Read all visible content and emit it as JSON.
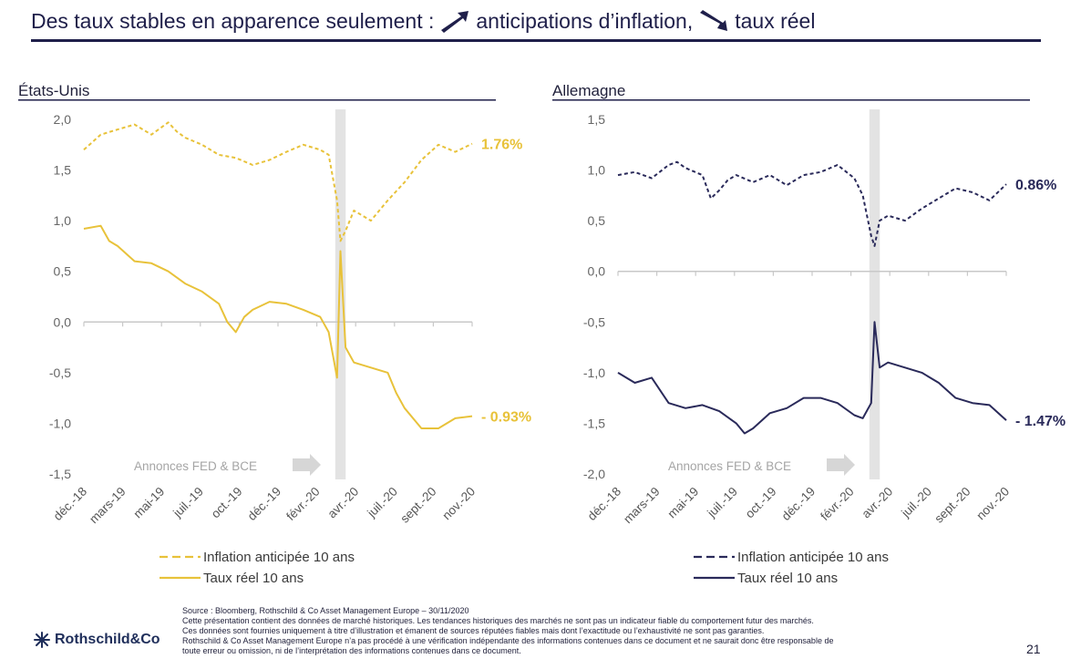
{
  "header": {
    "title_part1": "Des taux stables en apparence seulement :",
    "title_part2": "anticipations d’inflation,",
    "title_part3": "taux réel",
    "arrow_up_icon": "arrow-up-right-icon",
    "arrow_down_icon": "arrow-down-right-icon",
    "color": "#1f1f4a"
  },
  "footer": {
    "source": "Source : Bloomberg,  Rothschild & Co Asset Management  Europe  – 30/11/2020",
    "disclaimer_1": "Cette présentation contient des données de marché historiques. Les tendances historiques des marchés ne sont pas un indicateur fiable du comportement futur des marchés.",
    "disclaimer_2": "Ces données sont fournies uniquement à titre d’illustration et émanent de sources réputées fiables mais dont l’exactitude ou l’exhaustivité ne sont pas garanties.",
    "disclaimer_3": "Rothschild & Co Asset Management  Europe  n’a pas procédé à une  vérification indépendante des informations contenues dans ce document et ne saurait donc être responsable de",
    "disclaimer_4": "toute erreur ou omission, ni de l’interprétation des informations contenues dans ce document.",
    "logo_text": "Rothschild&Co",
    "page_number": "21"
  },
  "chart_data": [
    {
      "type": "line",
      "panel_title": "États-Unis",
      "color": "#e8c23a",
      "x_tick_labels": [
        "déc.-18",
        "mars-19",
        "mai-19",
        "juil.-19",
        "oct.-19",
        "déc.-19",
        "févr.-20",
        "avr.-20",
        "juil.-20",
        "sept.-20",
        "nov.-20"
      ],
      "y_tick_labels": [
        "2,0",
        "1,5",
        "1,0",
        "0,5",
        "0,0",
        "-0,5",
        "-1,0",
        "-1,5"
      ],
      "ylim": [
        -1.5,
        2.0
      ],
      "shaded_band_x": [
        15.0,
        15.4
      ],
      "annotation": "Annonces FED & BCE",
      "series": [
        {
          "name": "Inflation anticipée 10 ans",
          "style": "dashed",
          "end_label": "1.76%",
          "x": [
            0,
            1,
            2,
            3,
            4,
            5,
            5.5,
            6,
            7,
            8,
            9,
            10,
            11,
            12,
            13,
            14,
            14.5,
            15,
            15.2,
            15.5,
            16,
            17,
            18,
            19,
            20,
            21,
            22,
            23
          ],
          "y": [
            1.7,
            1.85,
            1.9,
            1.95,
            1.85,
            1.97,
            1.88,
            1.82,
            1.75,
            1.65,
            1.62,
            1.55,
            1.6,
            1.68,
            1.75,
            1.7,
            1.65,
            1.2,
            0.8,
            0.9,
            1.1,
            1.0,
            1.2,
            1.38,
            1.6,
            1.75,
            1.68,
            1.76
          ]
        },
        {
          "name": "Taux réel 10 ans",
          "style": "solid",
          "end_label": "- 0.93%",
          "x": [
            0,
            1,
            1.5,
            2,
            3,
            4,
            5,
            6,
            7,
            8,
            8.5,
            9,
            9.5,
            10,
            11,
            12,
            13,
            14,
            14.5,
            15,
            15.2,
            15.5,
            16,
            17,
            18,
            18.5,
            19,
            20,
            21,
            22,
            23
          ],
          "y": [
            0.92,
            0.95,
            0.8,
            0.75,
            0.6,
            0.58,
            0.5,
            0.38,
            0.3,
            0.18,
            0.0,
            -0.1,
            0.05,
            0.12,
            0.2,
            0.18,
            0.12,
            0.05,
            -0.1,
            -0.55,
            0.7,
            -0.25,
            -0.4,
            -0.45,
            -0.5,
            -0.7,
            -0.85,
            -1.05,
            -1.05,
            -0.95,
            -0.93
          ]
        }
      ]
    },
    {
      "type": "line",
      "panel_title": "Allemagne",
      "color": "#2a2a5a",
      "x_tick_labels": [
        "déc.-18",
        "mars-19",
        "mai-19",
        "juil.-19",
        "oct.-19",
        "déc.-19",
        "févr.-20",
        "avr.-20",
        "juil.-20",
        "sept.-20",
        "nov.-20"
      ],
      "y_tick_labels": [
        "1,5",
        "1,0",
        "0,5",
        "0,0",
        "-0,5",
        "-1,0",
        "-1,5",
        "-2,0"
      ],
      "ylim": [
        -2.0,
        1.5
      ],
      "shaded_band_x": [
        15.0,
        15.4
      ],
      "annotation": "Annonces FED & BCE",
      "series": [
        {
          "name": "Inflation anticipée 10 ans",
          "style": "dashed",
          "end_label": "0.86%",
          "x": [
            0,
            1,
            2,
            3,
            3.5,
            4,
            5,
            5.5,
            6,
            6.5,
            7,
            8,
            9,
            10,
            11,
            12,
            13,
            14,
            14.5,
            15,
            15.2,
            15.5,
            16,
            17,
            18,
            19,
            20,
            21,
            22,
            23
          ],
          "y": [
            0.95,
            0.98,
            0.92,
            1.05,
            1.08,
            1.02,
            0.95,
            0.72,
            0.8,
            0.9,
            0.95,
            0.88,
            0.95,
            0.85,
            0.95,
            0.98,
            1.05,
            0.92,
            0.75,
            0.35,
            0.25,
            0.5,
            0.55,
            0.5,
            0.62,
            0.72,
            0.82,
            0.78,
            0.7,
            0.86
          ]
        },
        {
          "name": "Taux réel 10 ans",
          "style": "solid",
          "end_label": "- 1.47%",
          "x": [
            0,
            1,
            2,
            3,
            4,
            5,
            6,
            7,
            7.5,
            8,
            9,
            10,
            11,
            12,
            13,
            14,
            14.5,
            15,
            15.2,
            15.5,
            16,
            17,
            18,
            19,
            20,
            21,
            22,
            23
          ],
          "y": [
            -1.0,
            -1.1,
            -1.05,
            -1.3,
            -1.35,
            -1.32,
            -1.38,
            -1.5,
            -1.6,
            -1.55,
            -1.4,
            -1.35,
            -1.25,
            -1.25,
            -1.3,
            -1.42,
            -1.45,
            -1.3,
            -0.5,
            -0.95,
            -0.9,
            -0.95,
            -1.0,
            -1.1,
            -1.25,
            -1.3,
            -1.32,
            -1.47
          ]
        }
      ]
    }
  ]
}
